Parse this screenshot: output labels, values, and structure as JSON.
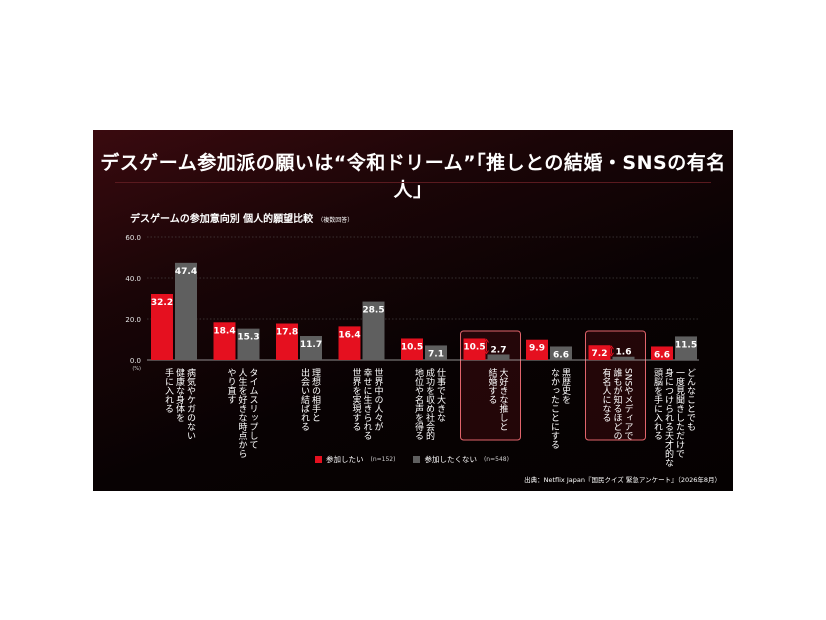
{
  "title": "デスゲーム参加派の願いは“令和ドリーム”「推しとの結婚・SNSの有名人」",
  "subtitle": "デスゲームの参加意向別 個人的願望比較",
  "subtitle_note": "（複数回答）",
  "source": "出典：Netflix Japan『国民クイズ 緊急アンケート』（2026年8月）",
  "colors": {
    "series1": "#e5101f",
    "series2": "#5f5f5f",
    "highlight": "#e0646b",
    "arrow": "#e5101f"
  },
  "chart_data": {
    "type": "bar",
    "ylim": [
      0,
      60
    ],
    "yticks": [
      "60.0",
      "40.0",
      "20.0",
      "0.0"
    ],
    "yunit": "(%)",
    "grid": true,
    "legend_position": "bottom",
    "categories": [
      "病気やケガのない健康な身体を手に入れる",
      "タイムスリップして人生を好きな時点からやり直す",
      "理想の相手と出会い結ばれる",
      "世界中の人々が幸せに生きられる世界を実現する",
      "仕事で大きな成功を収め社会的地位や名声を得る",
      "大好きな推しと結婚する",
      "黒歴史をなかったことにする",
      "SNSやメディアで誰もが知るほどの有名人になる",
      "どんなことでも一度見聞きしただけで身につけられる天才的な頭脳を手に入れる"
    ],
    "category_lines": [
      [
        "病気やケガのない",
        "健康な身体を",
        "手に入れる"
      ],
      [
        "タイムスリップして",
        "人生を好きな時点から",
        "やり直す"
      ],
      [
        "理想の相手と",
        "出会い結ばれる"
      ],
      [
        "世界中の人々が",
        "幸せに生きられる",
        "世界を実現する"
      ],
      [
        "仕事で大きな",
        "成功を収め社会的",
        "地位や名声を得る"
      ],
      [
        "大好きな推しと",
        "結婚する"
      ],
      [
        "黒歴史を",
        "なかったことにする"
      ],
      [
        "SNSやメディアで",
        "誰もが知るほどの",
        "有名人になる"
      ],
      [
        "どんなことでも",
        "一度見聞きしただけで",
        "身につけられる天才的な",
        "頭脳を手に入れる"
      ]
    ],
    "highlighted": [
      5,
      7
    ],
    "series": [
      {
        "name": "参加したい",
        "n": "(n=152)",
        "values": [
          32.2,
          18.4,
          17.8,
          16.4,
          10.5,
          10.5,
          9.9,
          7.2,
          6.6
        ],
        "labels": [
          "32.2",
          "18.4",
          "17.8",
          "16.4",
          "10.5",
          "10.5",
          "9.9",
          "7.2",
          "6.6"
        ]
      },
      {
        "name": "参加したくない",
        "n": "(n=548)",
        "values": [
          47.4,
          15.3,
          11.7,
          28.5,
          7.1,
          2.7,
          6.6,
          1.6,
          11.5
        ],
        "labels": [
          "47.4",
          "15.3",
          "11.7",
          "28.5",
          "7.1",
          "2.7",
          "6.6",
          "1.6",
          "11.5"
        ]
      }
    ]
  }
}
